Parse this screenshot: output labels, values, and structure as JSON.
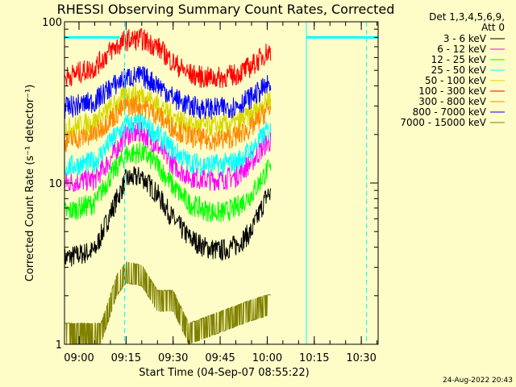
{
  "chart_data": {
    "type": "line",
    "title": "RHESSI Observing Summary Count Rates, Corrected",
    "xlabel": "Start Time (04-Sep-07 08:55:22)",
    "ylabel": "Corrected Count Rate (s⁻¹ detector⁻¹)",
    "y_scale": "log",
    "ylim": [
      1,
      100
    ],
    "xlim": [
      "08:55:22",
      "10:35:22"
    ],
    "x_ticks": [
      "09:00",
      "09:15",
      "09:30",
      "09:45",
      "10:00",
      "10:15",
      "10:30"
    ],
    "y_ticks": [
      "1",
      "10",
      "100"
    ],
    "legend_header": [
      "Det 1,3,4,5,6,9,",
      "Att 0"
    ],
    "legend_position": "top-right, outside plot",
    "grid": false,
    "footer": "24-Aug-2022 20:43",
    "data_interval": [
      "08:55:22",
      "10:01:10"
    ],
    "series": [
      {
        "name": "3 - 6 keV",
        "color": "#000000",
        "x": [
          "08:55",
          "09:05",
          "09:10",
          "09:15",
          "09:20",
          "09:25",
          "09:30",
          "09:35",
          "09:40",
          "09:45",
          "09:50",
          "09:55",
          "10:00"
        ],
        "y": [
          3.4,
          3.8,
          6.5,
          10.5,
          11.0,
          8.5,
          6.0,
          4.6,
          4.0,
          3.8,
          4.1,
          5.0,
          8.5
        ]
      },
      {
        "name": "6 - 12 keV",
        "color": "#ff00ff",
        "x": [
          "08:55",
          "09:05",
          "09:10",
          "09:15",
          "09:20",
          "09:25",
          "09:30",
          "09:35",
          "09:40",
          "09:45",
          "09:50",
          "09:55",
          "10:00"
        ],
        "y": [
          10.0,
          10.5,
          14.0,
          20.0,
          20.5,
          17.0,
          13.0,
          11.0,
          10.5,
          10.5,
          11.0,
          13.5,
          18.0
        ]
      },
      {
        "name": "12 - 25 keV",
        "color": "#00ff00",
        "x": [
          "08:55",
          "09:05",
          "09:10",
          "09:15",
          "09:20",
          "09:25",
          "09:30",
          "09:35",
          "09:40",
          "09:45",
          "09:50",
          "09:55",
          "10:00"
        ],
        "y": [
          6.5,
          7.5,
          11.0,
          15.0,
          15.5,
          13.0,
          9.5,
          7.5,
          6.8,
          6.5,
          7.0,
          8.5,
          12.0
        ]
      },
      {
        "name": "25 - 50 keV",
        "color": "#00ffff",
        "x": [
          "08:55",
          "09:05",
          "09:10",
          "09:15",
          "09:20",
          "09:25",
          "09:30",
          "09:35",
          "09:40",
          "09:45",
          "09:50",
          "09:55",
          "10:00"
        ],
        "y": [
          12.5,
          13.5,
          18.0,
          23.0,
          23.5,
          20.0,
          16.0,
          13.5,
          13.0,
          13.0,
          13.5,
          16.0,
          21.0
        ]
      },
      {
        "name": "50 - 100 keV",
        "color": "#d8d800",
        "x": [
          "08:55",
          "09:05",
          "09:10",
          "09:15",
          "09:20",
          "09:25",
          "09:30",
          "09:35",
          "09:40",
          "09:45",
          "09:50",
          "09:55",
          "10:00"
        ],
        "y": [
          21.5,
          24.0,
          29.0,
          35.0,
          35.5,
          31.0,
          26.0,
          23.0,
          22.5,
          22.5,
          23.5,
          26.5,
          33.0
        ]
      },
      {
        "name": "100 - 300 keV",
        "color": "#ff0000",
        "x": [
          "08:55",
          "09:05",
          "09:10",
          "09:15",
          "09:20",
          "09:25",
          "09:30",
          "09:35",
          "09:40",
          "09:45",
          "09:50",
          "09:55",
          "10:00"
        ],
        "y": [
          45.0,
          52.0,
          66.0,
          77.0,
          78.0,
          70.0,
          56.0,
          47.5,
          45.0,
          45.0,
          47.0,
          53.0,
          65.0
        ]
      },
      {
        "name": "300 - 800 keV",
        "color": "#ff8800",
        "x": [
          "08:55",
          "09:05",
          "09:10",
          "09:15",
          "09:20",
          "09:25",
          "09:30",
          "09:35",
          "09:40",
          "09:45",
          "09:50",
          "09:55",
          "10:00"
        ],
        "y": [
          18.0,
          20.0,
          25.0,
          30.0,
          30.5,
          26.5,
          22.0,
          19.5,
          18.5,
          18.5,
          19.5,
          22.0,
          28.5
        ]
      },
      {
        "name": "800 - 7000 keV",
        "color": "#0000ff",
        "x": [
          "08:55",
          "09:05",
          "09:10",
          "09:15",
          "09:20",
          "09:25",
          "09:30",
          "09:35",
          "09:40",
          "09:45",
          "09:50",
          "09:55",
          "10:00"
        ],
        "y": [
          29.0,
          32.0,
          39.0,
          45.0,
          46.0,
          41.0,
          34.0,
          30.0,
          29.0,
          29.0,
          30.0,
          34.0,
          40.0
        ]
      },
      {
        "name": "7000 - 15000 keV",
        "color": "#808000",
        "x": [
          "08:55",
          "09:07",
          "09:12",
          "09:15",
          "09:20",
          "09:25",
          "09:30",
          "09:35",
          "09:55",
          "10:00"
        ],
        "y": [
          1.0,
          1.0,
          2.0,
          2.4,
          2.3,
          1.6,
          1.6,
          1.0,
          1.4,
          1.5
        ]
      }
    ],
    "marker_lines": [
      {
        "type": "solid",
        "color": "#00ffff",
        "at": [
          "08:55:22",
          "10:12:30"
        ]
      },
      {
        "type": "dashed",
        "color": "#00ffff",
        "at": [
          "09:14:30",
          "10:31:40"
        ]
      }
    ],
    "marker_segments": [
      {
        "color": "#00ffff",
        "from": "08:55:22",
        "to": "09:13:00",
        "y": 80
      },
      {
        "color": "#00ffff",
        "from": "10:12:30",
        "to": "10:35:22",
        "y": 80
      }
    ]
  }
}
